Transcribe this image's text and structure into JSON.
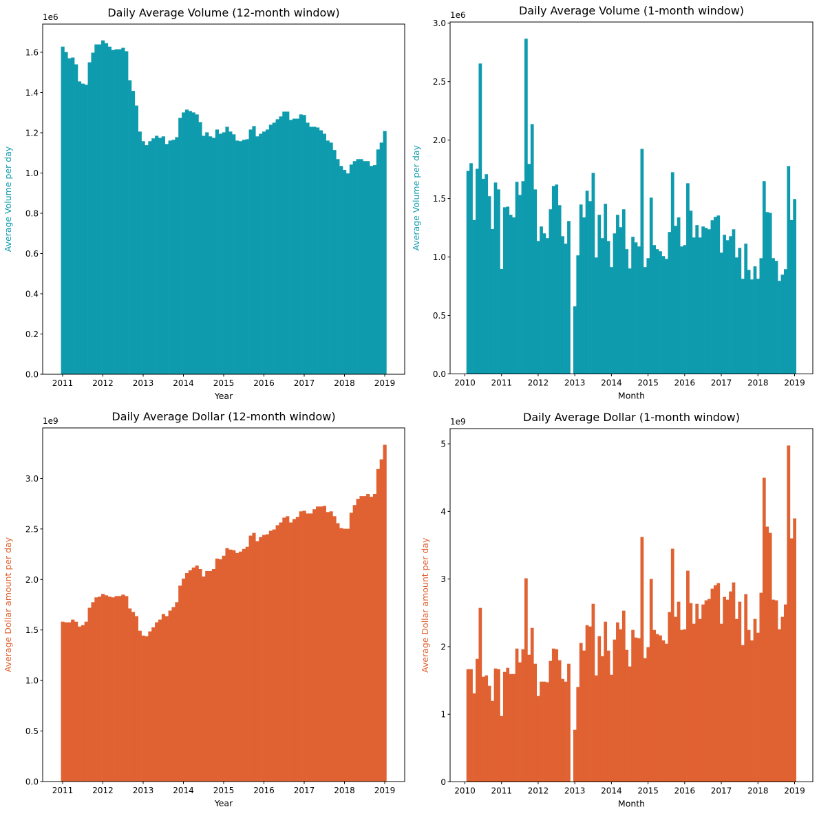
{
  "colors": {
    "volume": "#0f9bae",
    "dollar": "#e06131"
  },
  "chart_data": [
    {
      "type": "bar",
      "title": "Daily Average Volume (12-month window)",
      "xlabel": "Year",
      "ylabel": "Average Volume per day",
      "y_multiplier_label": "1e6",
      "color": "volume",
      "x_start": "2010-12",
      "x_end": "2018-12",
      "x_freq": "monthly",
      "xticks": [
        "2011",
        "2012",
        "2013",
        "2014",
        "2015",
        "2016",
        "2017",
        "2018",
        "2019"
      ],
      "yticks": [
        "0.0",
        "0.2",
        "0.4",
        "0.6",
        "0.8",
        "1.0",
        "1.2",
        "1.4",
        "1.6"
      ],
      "ylim": [
        0,
        1.74
      ],
      "values": [
        1.628,
        1.601,
        1.57,
        1.574,
        1.54,
        1.455,
        1.444,
        1.439,
        1.55,
        1.598,
        1.639,
        1.639,
        1.659,
        1.645,
        1.628,
        1.611,
        1.615,
        1.615,
        1.622,
        1.605,
        1.461,
        1.408,
        1.335,
        1.206,
        1.158,
        1.138,
        1.158,
        1.172,
        1.185,
        1.175,
        1.182,
        1.144,
        1.161,
        1.165,
        1.178,
        1.274,
        1.301,
        1.315,
        1.308,
        1.301,
        1.291,
        1.253,
        1.185,
        1.202,
        1.182,
        1.175,
        1.216,
        1.195,
        1.202,
        1.23,
        1.206,
        1.192,
        1.161,
        1.158,
        1.165,
        1.168,
        1.216,
        1.233,
        1.182,
        1.195,
        1.206,
        1.216,
        1.24,
        1.25,
        1.267,
        1.281,
        1.305,
        1.305,
        1.264,
        1.27,
        1.27,
        1.291,
        1.288,
        1.25,
        1.23,
        1.23,
        1.226,
        1.212,
        1.195,
        1.161,
        1.151,
        1.114,
        1.069,
        1.035,
        1.015,
        0.998,
        1.042,
        1.059,
        1.069,
        1.069,
        1.059,
        1.059,
        1.035,
        1.039,
        1.117,
        1.151,
        1.209
      ]
    },
    {
      "type": "bar",
      "title": "Daily Average Volume (1-month window)",
      "xlabel": "Month",
      "ylabel": "Average Volume per day",
      "y_multiplier_label": "1e6",
      "color": "volume",
      "x_start": "2010-01",
      "x_end": "2018-12",
      "x_freq": "monthly",
      "xticks": [
        "2010",
        "2011",
        "2012",
        "2013",
        "2014",
        "2015",
        "2016",
        "2017",
        "2018",
        "2019"
      ],
      "yticks": [
        "0.0",
        "0.5",
        "1.0",
        "1.5",
        "2.0",
        "2.5",
        "3.0"
      ],
      "ylim": [
        0,
        3.01
      ],
      "values": [
        1.737,
        1.802,
        1.316,
        1.755,
        2.655,
        1.669,
        1.708,
        1.52,
        1.239,
        1.637,
        1.578,
        0.898,
        1.425,
        1.431,
        1.361,
        1.339,
        1.643,
        1.531,
        1.649,
        2.867,
        1.796,
        2.137,
        1.578,
        1.137,
        1.261,
        1.202,
        1.161,
        1.408,
        1.608,
        1.62,
        1.443,
        1.178,
        1.114,
        1.308,
        null,
        0.578,
        1.014,
        1.449,
        1.339,
        1.567,
        1.478,
        1.72,
        0.996,
        1.361,
        1.161,
        1.455,
        1.137,
        0.914,
        1.202,
        1.361,
        1.255,
        1.408,
        1.067,
        0.902,
        1.173,
        1.125,
        1.09,
        1.925,
        0.914,
        0.99,
        1.508,
        1.102,
        1.067,
        1.049,
        1.008,
        0.984,
        1.214,
        1.725,
        1.267,
        1.339,
        1.09,
        1.102,
        1.631,
        1.396,
        1.167,
        1.273,
        1.167,
        1.261,
        1.249,
        1.237,
        1.314,
        1.343,
        1.355,
        1.037,
        1.19,
        1.143,
        1.178,
        1.237,
        0.996,
        1.078,
        0.814,
        1.114,
        0.89,
        0.808,
        0.92,
        0.814,
        0.99,
        1.649,
        1.384,
        1.378,
        0.99,
        0.967,
        0.796,
        0.849,
        0.896,
        1.778,
        1.316,
        1.496
      ]
    },
    {
      "type": "bar",
      "title": "Daily Average Dollar (12-month window)",
      "xlabel": "Year",
      "ylabel": "Average Dollar amount per day",
      "y_multiplier_label": "1e9",
      "color": "dollar",
      "x_start": "2010-12",
      "x_end": "2018-12",
      "x_freq": "monthly",
      "xticks": [
        "2011",
        "2012",
        "2013",
        "2014",
        "2015",
        "2016",
        "2017",
        "2018",
        "2019"
      ],
      "yticks": [
        "0.0",
        "0.5",
        "1.0",
        "1.5",
        "2.0",
        "2.5",
        "3.0"
      ],
      "ylim": [
        0,
        3.5
      ],
      "values": [
        1.582,
        1.576,
        1.576,
        1.603,
        1.582,
        1.534,
        1.548,
        1.582,
        1.72,
        1.775,
        1.823,
        1.83,
        1.857,
        1.843,
        1.83,
        1.823,
        1.836,
        1.836,
        1.85,
        1.836,
        1.713,
        1.678,
        1.637,
        1.493,
        1.445,
        1.438,
        1.486,
        1.527,
        1.576,
        1.603,
        1.658,
        1.637,
        1.692,
        1.727,
        1.775,
        1.939,
        2.008,
        2.063,
        2.09,
        2.118,
        2.138,
        2.104,
        2.029,
        2.084,
        2.084,
        2.104,
        2.207,
        2.2,
        2.235,
        2.31,
        2.296,
        2.289,
        2.262,
        2.276,
        2.303,
        2.324,
        2.434,
        2.461,
        2.379,
        2.42,
        2.441,
        2.447,
        2.482,
        2.495,
        2.537,
        2.564,
        2.612,
        2.626,
        2.564,
        2.598,
        2.619,
        2.674,
        2.68,
        2.653,
        2.653,
        2.695,
        2.722,
        2.722,
        2.729,
        2.667,
        2.674,
        2.626,
        2.557,
        2.509,
        2.502,
        2.502,
        2.66,
        2.736,
        2.798,
        2.825,
        2.825,
        2.846,
        2.818,
        2.846,
        3.093,
        3.189,
        3.333
      ]
    },
    {
      "type": "bar",
      "title": "Daily Average Dollar (1-month window)",
      "xlabel": "Month",
      "ylabel": "Average Dollar amount per day",
      "y_multiplier_label": "1e9",
      "color": "dollar",
      "x_start": "2010-01",
      "x_end": "2018-12",
      "x_freq": "monthly",
      "xticks": [
        "2010",
        "2011",
        "2012",
        "2013",
        "2014",
        "2015",
        "2016",
        "2017",
        "2018",
        "2019"
      ],
      "yticks": [
        "0",
        "1",
        "2",
        "3",
        "4",
        "5"
      ],
      "ylim": [
        0,
        5.225
      ],
      "values": [
        1.667,
        1.667,
        1.31,
        1.819,
        2.573,
        1.555,
        1.575,
        1.422,
        1.198,
        1.677,
        1.667,
        0.974,
        1.626,
        1.687,
        1.595,
        1.595,
        1.972,
        1.768,
        1.962,
        3.011,
        1.88,
        2.278,
        1.748,
        1.27,
        1.483,
        1.483,
        1.473,
        1.789,
        1.972,
        1.962,
        1.799,
        1.524,
        1.483,
        1.748,
        null,
        0.771,
        1.402,
        2.054,
        1.942,
        2.318,
        2.298,
        2.634,
        1.575,
        2.155,
        1.86,
        2.369,
        1.942,
        1.585,
        2.105,
        2.359,
        2.257,
        2.532,
        1.952,
        1.707,
        2.247,
        2.135,
        2.125,
        3.622,
        1.83,
        1.993,
        3.001,
        2.247,
        2.186,
        2.166,
        2.094,
        2.043,
        2.512,
        3.449,
        2.441,
        2.665,
        2.247,
        2.257,
        3.123,
        2.644,
        2.339,
        2.634,
        2.41,
        2.624,
        2.685,
        2.705,
        2.858,
        2.909,
        2.94,
        2.339,
        2.736,
        2.695,
        2.817,
        2.95,
        2.41,
        2.665,
        2.023,
        2.777,
        2.247,
        2.094,
        2.41,
        2.206,
        2.797,
        4.498,
        3.775,
        3.683,
        2.695,
        2.685,
        2.257,
        2.441,
        2.624,
        4.976,
        3.602,
        3.897
      ]
    }
  ]
}
